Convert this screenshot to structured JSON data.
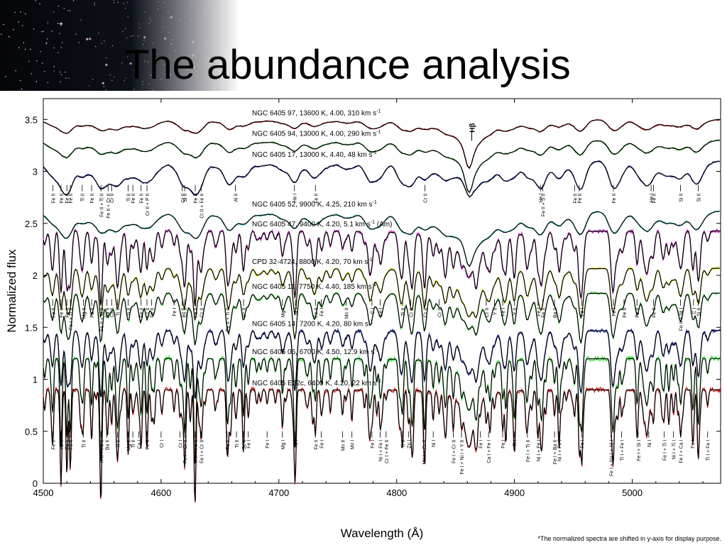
{
  "slide": {
    "title": "The abundance analysis",
    "footnote": "*The normalized spectra are shifted in y-axis for display purpose."
  },
  "colors": {
    "red": "#d42020",
    "green": "#1e9e1e",
    "blue": "#1c2fb0",
    "cyan": "#22b8b8",
    "magenta": "#c020c0",
    "yellow": "#e0e000",
    "lime": "#40e040",
    "model": "#000000"
  },
  "chart_data": {
    "type": "line",
    "xlabel": "Wavelength (Å)",
    "ylabel": "Normalized flux",
    "xlim": [
      4500,
      5075
    ],
    "ylim": [
      0,
      3.7
    ],
    "xticks": [
      4500,
      4600,
      4700,
      4800,
      4900,
      5000
    ],
    "yticks": [
      0,
      0.5,
      1,
      1.5,
      2,
      2.5,
      3,
      3.5
    ],
    "hbeta_label": "Hβ",
    "series": [
      {
        "label": "NGC 6405 97, 13600 K, 4.00, 310 km s",
        "label_sup": "-1",
        "label_suffix": "",
        "offset": 3.5,
        "color": "red",
        "depth": 0.02,
        "hdepth": 0.45,
        "hwidth": 14
      },
      {
        "label": "NGC 6405 94, 13000 K, 4.00, 290 km s",
        "label_sup": "-1",
        "label_suffix": "",
        "offset": 3.3,
        "color": "green",
        "depth": 0.025,
        "hdepth": 0.48,
        "hwidth": 14
      },
      {
        "label": "NGC 6405 17, 13000 K, 4.40, 48 km s",
        "label_sup": "-1",
        "label_suffix": "",
        "offset": 3.1,
        "color": "blue",
        "depth": 0.05,
        "hdepth": 0.3,
        "hwidth": 12
      },
      {
        "label": "NGC 6405 52, 9900 K, 4.25, 210 km s",
        "label_sup": "-1",
        "label_suffix": "",
        "offset": 2.62,
        "color": "cyan",
        "depth": 0.04,
        "hdepth": 0.5,
        "hwidth": 18
      },
      {
        "label": "NGC 6405 47, 9400 K, 4.20, 5.1 km s",
        "label_sup": "-1",
        "label_suffix": " (Am)",
        "offset": 2.43,
        "color": "magenta",
        "depth": 0.18,
        "hdepth": 0.45,
        "hwidth": 18
      },
      {
        "label": "CPD 32-4724, 8800 K, 4.20, 70 km s",
        "label_sup": "-1",
        "label_suffix": "",
        "offset": 2.07,
        "color": "yellow",
        "depth": 0.12,
        "hdepth": 0.47,
        "hwidth": 16
      },
      {
        "label": "NGC 6405 11, 7750 K, 4.40, 185 km s",
        "label_sup": "-1",
        "label_suffix": "",
        "offset": 1.83,
        "color": "lime",
        "depth": 0.12,
        "hdepth": 0.35,
        "hwidth": 14
      },
      {
        "label": "NGC 6405 14, 7200 K, 4.20, 80 km s",
        "label_sup": "-1",
        "label_suffix": "",
        "offset": 1.47,
        "color": "blue",
        "depth": 0.16,
        "hdepth": 0.42,
        "hwidth": 12
      },
      {
        "label": "NGC 6405 06, 6700 K, 4.50, 12.9 km s",
        "label_sup": "-1",
        "label_suffix": "",
        "offset": 1.2,
        "color": "lime",
        "depth": 0.26,
        "hdepth": 0.5,
        "hwidth": 10
      },
      {
        "label": "NGC 6405 E32c, 6400 K, 4.20, 22 km s",
        "label_sup": "-1",
        "label_suffix": "",
        "offset": 0.9,
        "color": "red",
        "depth": 0.28,
        "hdepth": 0.55,
        "hwidth": 8
      }
    ],
    "line_ids": [
      {
        "y": 2.87,
        "labels": [
          {
            "x": 4508,
            "t": "Fe II"
          },
          {
            "x": 4515,
            "t": "Fe II"
          },
          {
            "x": 4520,
            "t": "Fe II"
          },
          {
            "x": 4523,
            "t": "Fe II"
          },
          {
            "x": 4533,
            "t": "Ti II"
          },
          {
            "x": 4541,
            "t": "Fe II"
          },
          {
            "x": 4549,
            "t": "Fe II + Ti II"
          },
          {
            "x": 4555,
            "t": "Fe II + Cr II"
          },
          {
            "x": 4558,
            "t": "Cr II"
          },
          {
            "x": 4572,
            "t": "Ti II"
          },
          {
            "x": 4576,
            "t": "Fe II"
          },
          {
            "x": 4583,
            "t": "Fe II"
          },
          {
            "x": 4588,
            "t": "Cr II + P II"
          },
          {
            "x": 4618,
            "t": "Cr II"
          },
          {
            "x": 4620,
            "t": "Si II"
          },
          {
            "x": 4629,
            "t": "Fe II"
          },
          {
            "x": 4634,
            "t": "Cr II + Fe II"
          },
          {
            "x": 4663,
            "t": "Al II"
          },
          {
            "x": 4713,
            "t": "He I"
          },
          {
            "x": 4731,
            "t": "Fe II"
          },
          {
            "x": 4824,
            "t": "Cr II"
          },
          {
            "x": 4922,
            "t": "He I"
          },
          {
            "x": 4924,
            "t": "Fe II + S II"
          },
          {
            "x": 4951,
            "t": "Fe II"
          },
          {
            "x": 4955,
            "t": "Fe II"
          },
          {
            "x": 4984,
            "t": "Fe II"
          },
          {
            "x": 5016,
            "t": "He I"
          },
          {
            "x": 5018,
            "t": "Fe II"
          },
          {
            "x": 5041,
            "t": "Si II"
          },
          {
            "x": 5056,
            "t": "Si II"
          }
        ]
      },
      {
        "y": 1.77,
        "labels": [
          {
            "x": 4508,
            "t": "Fe II"
          },
          {
            "x": 4515,
            "t": "Fe II"
          },
          {
            "x": 4520,
            "t": "Fe II"
          },
          {
            "x": 4523,
            "t": "Fe I + Ti II"
          },
          {
            "x": 4534,
            "t": "Mg II"
          },
          {
            "x": 4541,
            "t": "Fe II"
          },
          {
            "x": 4549,
            "t": "Fe II + Ti II"
          },
          {
            "x": 4554,
            "t": "Ba II"
          },
          {
            "x": 4558,
            "t": "Cr II"
          },
          {
            "x": 4563,
            "t": "Ti II"
          },
          {
            "x": 4572,
            "t": "Ti II"
          },
          {
            "x": 4583,
            "t": "Fe II"
          },
          {
            "x": 4588,
            "t": "Cr II"
          },
          {
            "x": 4592,
            "t": "Fe II"
          },
          {
            "x": 4611,
            "t": "Fe I"
          },
          {
            "x": 4618,
            "t": "Cr II"
          },
          {
            "x": 4620,
            "t": "Cr II"
          },
          {
            "x": 4629,
            "t": "Fe II"
          },
          {
            "x": 4634,
            "t": "Cr II"
          },
          {
            "x": 4656,
            "t": "Fe II + Ti II"
          },
          {
            "x": 4670,
            "t": "Sc II"
          },
          {
            "x": 4703,
            "t": "Mg I"
          },
          {
            "x": 4714,
            "t": "Ni I"
          },
          {
            "x": 4731,
            "t": "Fe II"
          },
          {
            "x": 4736,
            "t": "Fe I"
          },
          {
            "x": 4757,
            "t": "Mn II"
          },
          {
            "x": 4779,
            "t": "C I"
          },
          {
            "x": 4786,
            "t": "Fe I"
          },
          {
            "x": 4805,
            "t": "Ti II"
          },
          {
            "x": 4812,
            "t": "Cr II"
          },
          {
            "x": 4824,
            "t": "Cr II"
          },
          {
            "x": 4836,
            "t": "Cr II"
          },
          {
            "x": 4876,
            "t": "Cr II"
          },
          {
            "x": 4883,
            "t": "Y II"
          },
          {
            "x": 4890,
            "t": "Fe I"
          },
          {
            "x": 4900,
            "t": "Y II"
          },
          {
            "x": 4920,
            "t": "Fe I"
          },
          {
            "x": 4924,
            "t": "Fe II"
          },
          {
            "x": 4934,
            "t": "Ba II"
          },
          {
            "x": 4957,
            "t": "Fe I"
          },
          {
            "x": 4984,
            "t": "Fe I"
          },
          {
            "x": 4993,
            "t": "Fe II"
          },
          {
            "x": 5004,
            "t": "Fe II"
          },
          {
            "x": 5018,
            "t": "Fe II"
          },
          {
            "x": 5041,
            "t": "Fe II + Ni I"
          },
          {
            "x": 5052,
            "t": "C I"
          },
          {
            "x": 5056,
            "t": "Si II"
          }
        ]
      },
      {
        "y": 0.5,
        "labels": [
          {
            "x": 4508,
            "t": "Fe II"
          },
          {
            "x": 4515,
            "t": "Fe II"
          },
          {
            "x": 4520,
            "t": "Fe II"
          },
          {
            "x": 4523,
            "t": "Fe II"
          },
          {
            "x": 4534,
            "t": "Ti II"
          },
          {
            "x": 4549,
            "t": "Ti II + Fe II"
          },
          {
            "x": 4554,
            "t": "Ba II"
          },
          {
            "x": 4563,
            "t": "Ti II"
          },
          {
            "x": 4572,
            "t": "Mg II"
          },
          {
            "x": 4576,
            "t": "Ti II"
          },
          {
            "x": 4581,
            "t": "Ca I"
          },
          {
            "x": 4588,
            "t": "Fe II"
          },
          {
            "x": 4600,
            "t": "Cr I"
          },
          {
            "x": 4616,
            "t": "Cr I"
          },
          {
            "x": 4620,
            "t": "Fe I + Cr II"
          },
          {
            "x": 4629,
            "t": "Ti II + Fe II"
          },
          {
            "x": 4634,
            "t": "Fe I + Cr II"
          },
          {
            "x": 4656,
            "t": "Fe II"
          },
          {
            "x": 4664,
            "t": "Ti II"
          },
          {
            "x": 4670,
            "t": "Sc II"
          },
          {
            "x": 4674,
            "t": "Fe I"
          },
          {
            "x": 4690,
            "t": "Fe I"
          },
          {
            "x": 4703,
            "t": "Mg I"
          },
          {
            "x": 4714,
            "t": "Ni I"
          },
          {
            "x": 4731,
            "t": "Fe II"
          },
          {
            "x": 4736,
            "t": "Fe I"
          },
          {
            "x": 4754,
            "t": "Mn II"
          },
          {
            "x": 4762,
            "t": "Mn I"
          },
          {
            "x": 4779,
            "t": "Fe I"
          },
          {
            "x": 4786,
            "t": "Ni I + Fe I"
          },
          {
            "x": 4791,
            "t": "Cr I + Fe II"
          },
          {
            "x": 4805,
            "t": "Ti II"
          },
          {
            "x": 4810,
            "t": "Zn I"
          },
          {
            "x": 4823,
            "t": "Mn I + Cr II"
          },
          {
            "x": 4831,
            "t": "Ni I"
          },
          {
            "x": 4848,
            "t": "Fe I + Cr II"
          },
          {
            "x": 4855,
            "t": "Fe I + Ni I + Y II"
          },
          {
            "x": 4871,
            "t": "Fe I"
          },
          {
            "x": 4878,
            "t": "Ca I + Fe I"
          },
          {
            "x": 4890,
            "t": "Fe I"
          },
          {
            "x": 4900,
            "t": "Ti I"
          },
          {
            "x": 4911,
            "t": "Fe I + Ti II"
          },
          {
            "x": 4920,
            "t": "Ni I + Fe I"
          },
          {
            "x": 4934,
            "t": "Fe I + Ba II"
          },
          {
            "x": 4938,
            "t": "Ni I + Fe I"
          },
          {
            "x": 4957,
            "t": "Fe I"
          },
          {
            "x": 4982,
            "t": "Fe I + Na I + Ni I"
          },
          {
            "x": 4991,
            "t": "Ti I + Fe I"
          },
          {
            "x": 5005,
            "t": "Fe I + Si I"
          },
          {
            "x": 5014,
            "t": "Ni I"
          },
          {
            "x": 5027,
            "t": "Fe I + Ti I"
          },
          {
            "x": 5035,
            "t": "Ni I + Ti I"
          },
          {
            "x": 5041,
            "t": "Fe I + Ca I"
          },
          {
            "x": 5051,
            "t": "Fe I"
          },
          {
            "x": 5064,
            "t": "Ti I + Fe I"
          }
        ]
      }
    ]
  }
}
